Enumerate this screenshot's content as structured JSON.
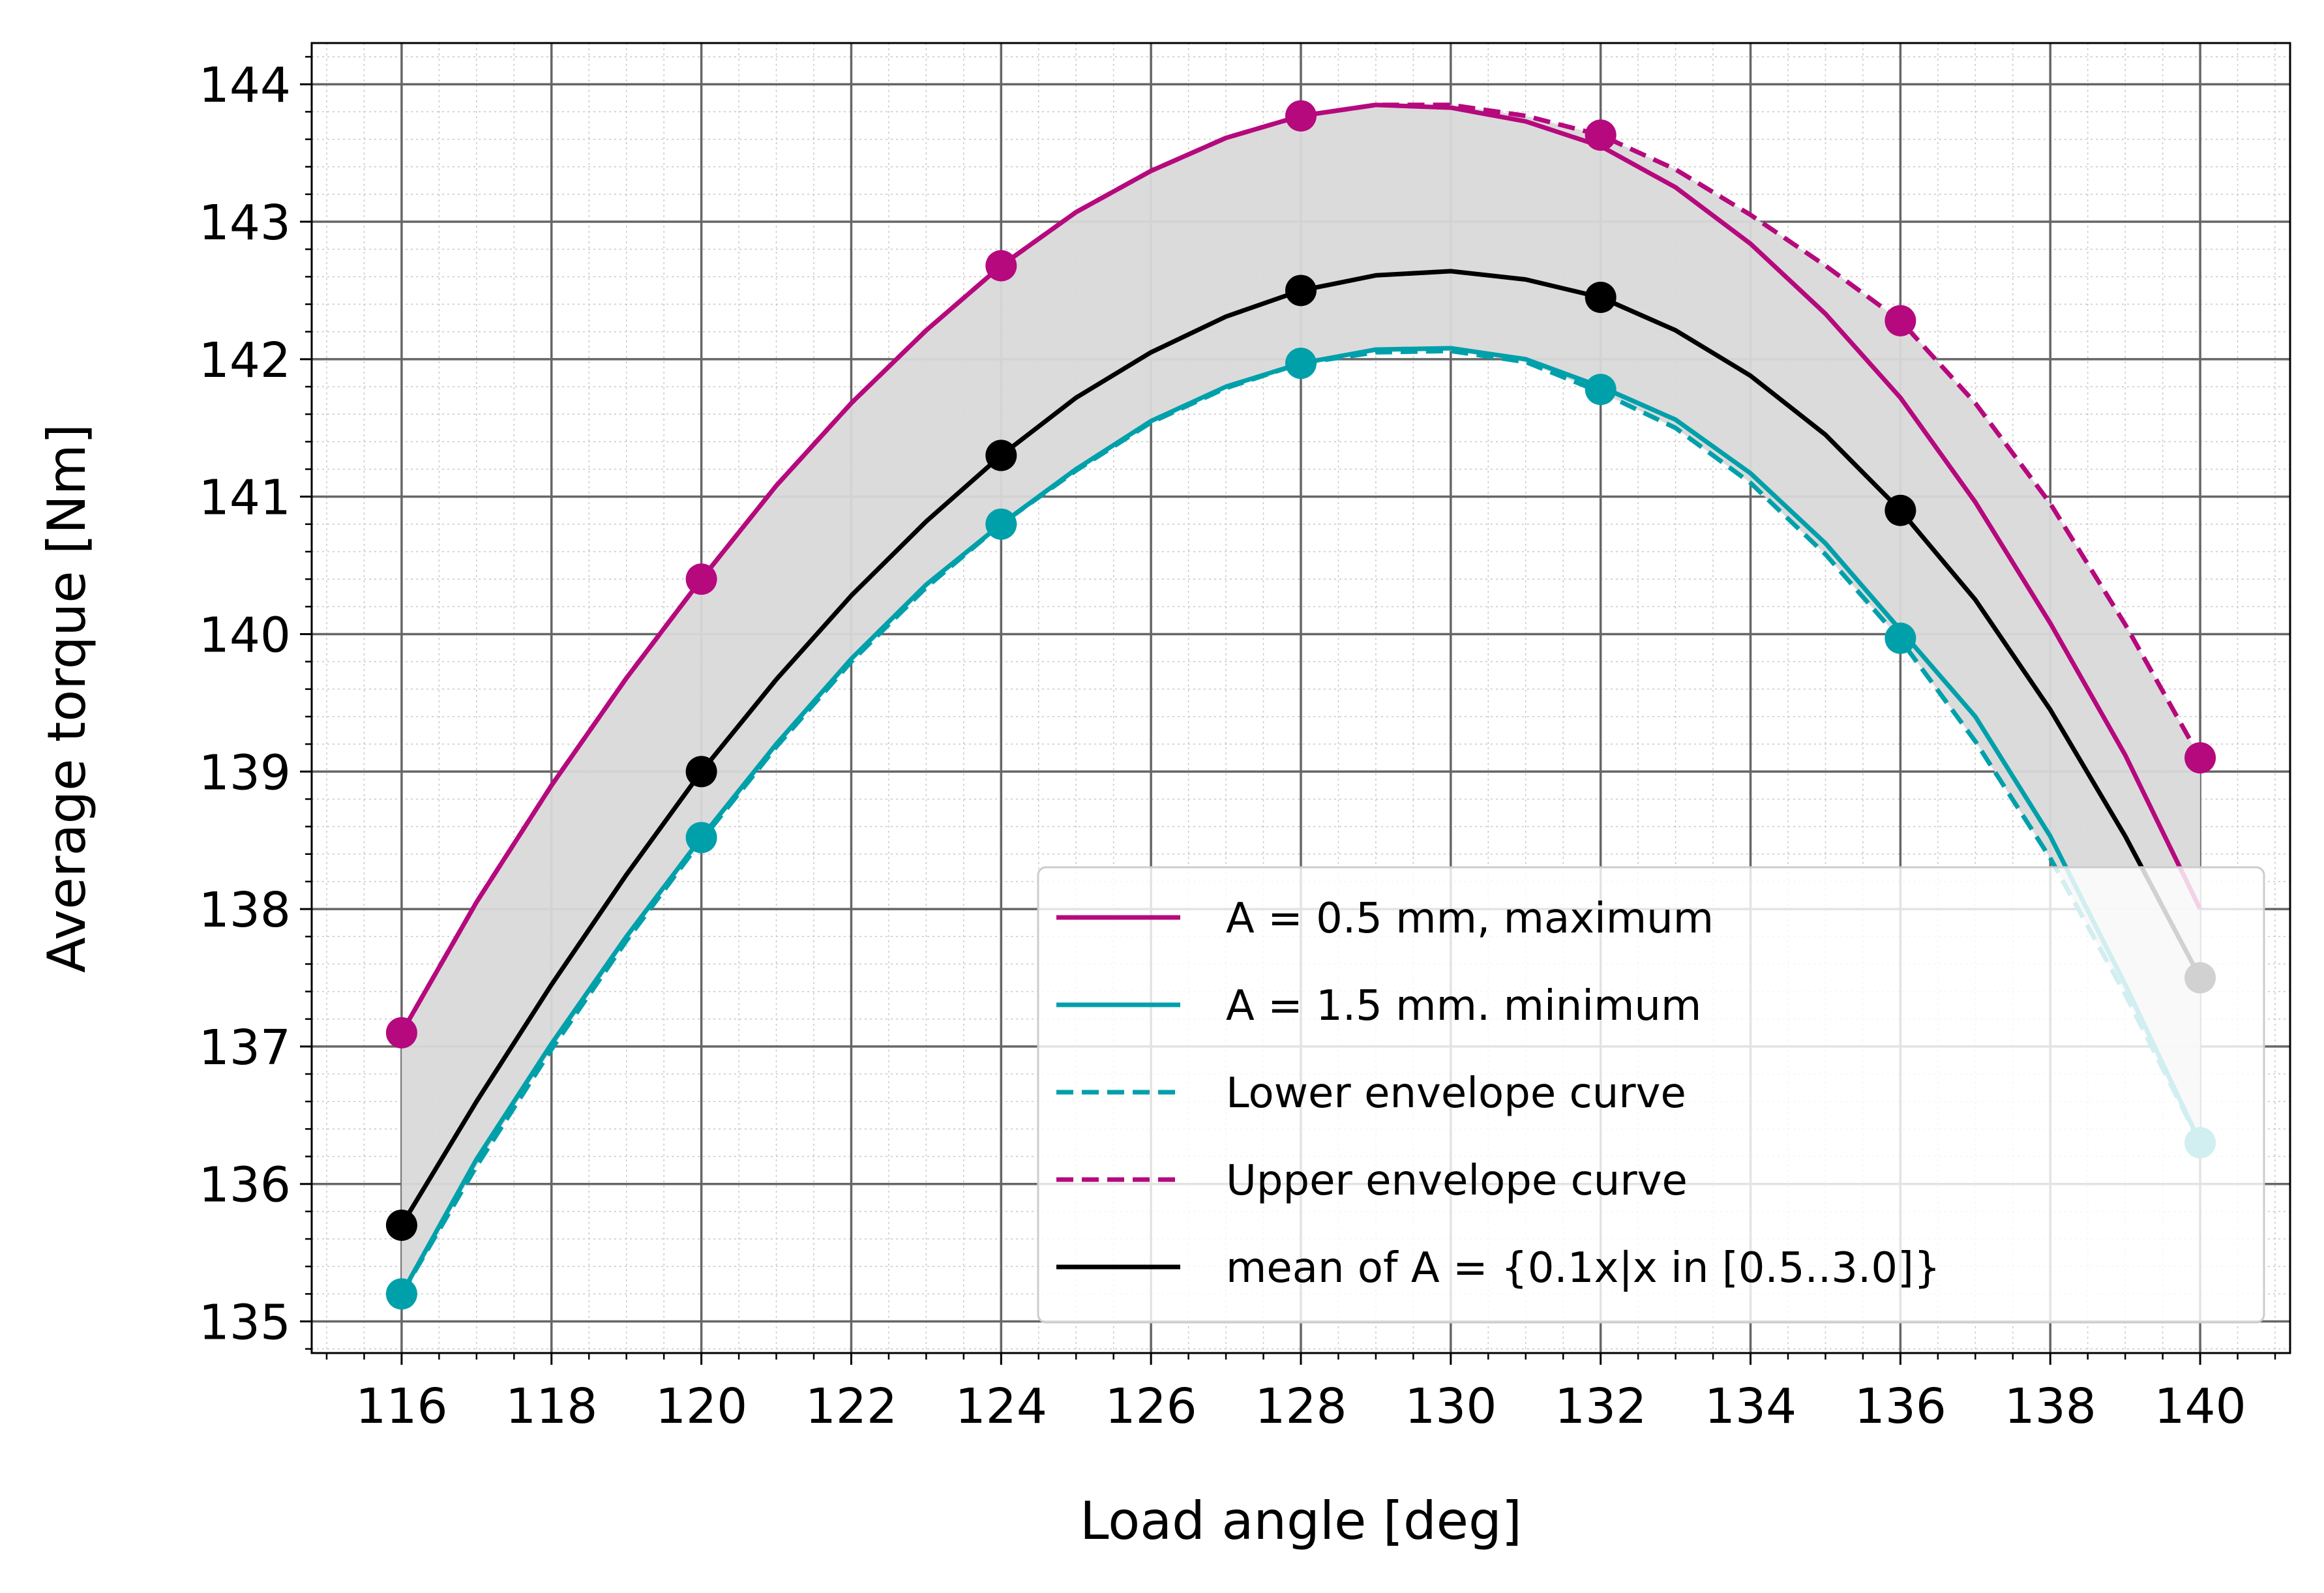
{
  "chart_data": {
    "type": "line",
    "title": "",
    "xlabel": "Load angle [deg]",
    "ylabel": "Average torque [Nm]",
    "xlim": [
      114.8,
      141.2
    ],
    "ylim": [
      134.77,
      144.3
    ],
    "x_ticks": [
      116,
      118,
      120,
      122,
      124,
      126,
      128,
      130,
      132,
      134,
      136,
      138,
      140
    ],
    "y_ticks": [
      135,
      136,
      137,
      138,
      139,
      140,
      141,
      142,
      143,
      144
    ],
    "grid": true,
    "minor_grid": true,
    "legend_position": "lower-right",
    "colors": {
      "maximum": "#b5097d",
      "minimum": "#00a0aa",
      "mean": "#000000",
      "band": "#d9d9d9",
      "major_grid": "#666666",
      "minor_grid": "#c8c8c8"
    },
    "series": [
      {
        "name": "A = 0.5 mm, maximum",
        "style": "solid",
        "color": "#b5097d",
        "x": [
          116,
          117,
          118,
          119,
          120,
          121,
          122,
          123,
          124,
          125,
          126,
          127,
          128,
          129,
          130,
          131,
          132,
          133,
          134,
          135,
          136,
          137,
          138,
          139,
          140
        ],
        "y": [
          137.1,
          138.05,
          138.9,
          139.68,
          140.4,
          141.08,
          141.68,
          142.21,
          142.68,
          143.07,
          143.37,
          143.61,
          143.77,
          143.85,
          143.83,
          143.73,
          143.55,
          143.25,
          142.84,
          142.33,
          141.72,
          140.96,
          140.08,
          139.12,
          138.0
        ]
      },
      {
        "name": "A = 1.5 mm. minimum",
        "style": "solid",
        "color": "#00a0aa",
        "x": [
          116,
          117,
          118,
          119,
          120,
          121,
          122,
          123,
          124,
          125,
          126,
          127,
          128,
          129,
          130,
          131,
          132,
          133,
          134,
          135,
          136,
          137,
          138,
          139,
          140
        ],
        "y": [
          135.2,
          136.18,
          137.02,
          137.8,
          138.52,
          139.2,
          139.82,
          140.36,
          140.8,
          141.2,
          141.55,
          141.8,
          141.97,
          142.07,
          142.08,
          142.0,
          141.8,
          141.56,
          141.17,
          140.66,
          140.03,
          139.4,
          138.53,
          137.45,
          136.3
        ]
      },
      {
        "name": "Lower envelope curve",
        "style": "dashed",
        "color": "#00a0aa",
        "x": [
          116,
          117,
          118,
          119,
          120,
          121,
          122,
          123,
          124,
          125,
          126,
          127,
          128,
          129,
          130,
          131,
          132,
          133,
          134,
          135,
          136,
          137,
          138,
          139,
          140
        ],
        "y": [
          135.2,
          136.13,
          136.98,
          137.77,
          138.5,
          139.18,
          139.8,
          140.34,
          140.8,
          141.19,
          141.54,
          141.79,
          141.97,
          142.05,
          142.06,
          141.98,
          141.76,
          141.5,
          141.1,
          140.58,
          139.96,
          139.22,
          138.37,
          137.38,
          136.3
        ]
      },
      {
        "name": "Upper envelope curve",
        "style": "dashed",
        "color": "#b5097d",
        "x": [
          116,
          117,
          118,
          119,
          120,
          121,
          122,
          123,
          124,
          125,
          126,
          127,
          128,
          129,
          130,
          131,
          132,
          133,
          134,
          135,
          136,
          137,
          138,
          139,
          140
        ],
        "y": [
          137.1,
          138.05,
          138.9,
          139.68,
          140.4,
          141.08,
          141.68,
          142.21,
          142.68,
          143.07,
          143.37,
          143.61,
          143.77,
          143.85,
          143.85,
          143.77,
          143.63,
          143.38,
          143.05,
          142.68,
          142.28,
          141.68,
          140.95,
          140.07,
          139.1
        ]
      },
      {
        "name": "mean of A = {0.1x|x in [0.5..3.0]}",
        "style": "solid",
        "color": "#000000",
        "x": [
          116,
          117,
          118,
          119,
          120,
          121,
          122,
          123,
          124,
          125,
          126,
          127,
          128,
          129,
          130,
          131,
          132,
          133,
          134,
          135,
          136,
          137,
          138,
          139,
          140
        ],
        "y": [
          135.7,
          136.6,
          137.45,
          138.25,
          139.0,
          139.67,
          140.28,
          140.82,
          141.3,
          141.72,
          142.05,
          142.31,
          142.5,
          142.61,
          142.64,
          142.58,
          142.45,
          142.21,
          141.88,
          141.45,
          140.9,
          140.25,
          139.45,
          138.53,
          137.5
        ]
      }
    ],
    "markers": [
      {
        "series_color": "#b5097d",
        "x": [
          116,
          120,
          124,
          128,
          132,
          136,
          140
        ],
        "y": [
          137.1,
          140.4,
          142.68,
          143.77,
          143.63,
          142.28,
          139.1
        ]
      },
      {
        "series_color": "#00a0aa",
        "x": [
          116,
          120,
          124,
          128,
          132,
          136,
          140
        ],
        "y": [
          135.2,
          138.52,
          140.8,
          141.97,
          141.78,
          139.97,
          136.3
        ]
      },
      {
        "series_color": "#000000",
        "x": [
          116,
          120,
          124,
          128,
          132,
          136,
          140
        ],
        "y": [
          135.7,
          139.0,
          141.3,
          142.5,
          142.45,
          140.9,
          137.5
        ]
      }
    ]
  }
}
